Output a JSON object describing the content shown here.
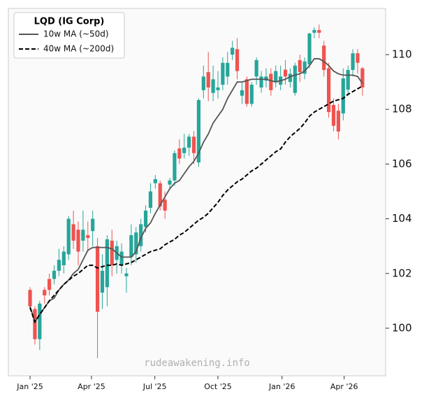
{
  "chart_data": {
    "type": "candlestick",
    "legend_title": "LQD (IG Corp)",
    "legend_position": "upper left",
    "watermark": "rudeawakening.info",
    "up_color": "#26a69a",
    "down_color": "#ef5350",
    "x": [
      0,
      1,
      2,
      3,
      4,
      5,
      6,
      7,
      8,
      9,
      10,
      11,
      12,
      13,
      14,
      15,
      16,
      17,
      18,
      19,
      20,
      21,
      22,
      23,
      24,
      25,
      26,
      27,
      28,
      29,
      30,
      31,
      32,
      33,
      34,
      35,
      36,
      37,
      38,
      39,
      40,
      41,
      42,
      43,
      44,
      45,
      46,
      47,
      48,
      49,
      50,
      51,
      52,
      53,
      54,
      55,
      56,
      57,
      58,
      59,
      60,
      61,
      62,
      63,
      64,
      65,
      66,
      67,
      68,
      69
    ],
    "open": [
      101.4,
      100.7,
      99.6,
      101.4,
      101.8,
      101.8,
      102.1,
      102.3,
      102.7,
      103.8,
      103.6,
      103.2,
      103.4,
      103.55,
      103.0,
      101.3,
      101.5,
      103.2,
      102.5,
      102.3,
      101.9,
      102.6,
      102.7,
      103.0,
      103.7,
      104.4,
      105.3,
      105.3,
      104.7,
      105.25,
      105.4,
      106.57,
      106.4,
      106.6,
      107.0,
      106.06,
      108.7,
      109.36,
      108.6,
      108.7,
      108.9,
      109.2,
      110.0,
      110.2,
      108.5,
      109.1,
      108.2,
      109.2,
      108.8,
      109.05,
      109.3,
      109.0,
      108.9,
      109.45,
      109.0,
      108.6,
      109.8,
      109.3,
      109.64,
      110.8,
      110.9,
      110.33,
      109.5,
      108.16,
      107.95,
      107.85,
      108.72,
      109.44,
      110.05,
      109.5
    ],
    "high": [
      101.5,
      100.8,
      101.0,
      101.5,
      102.0,
      102.3,
      102.9,
      103.0,
      104.1,
      104.3,
      103.9,
      104.3,
      103.9,
      104.3,
      103.3,
      102.7,
      103.4,
      103.6,
      103.2,
      103.1,
      102.2,
      103.8,
      103.7,
      104.0,
      104.5,
      105.3,
      105.6,
      105.4,
      105.0,
      105.5,
      106.5,
      106.9,
      107.1,
      107.1,
      107.2,
      108.4,
      109.6,
      110.1,
      109.6,
      109.4,
      109.9,
      110.1,
      110.5,
      110.6,
      109.0,
      109.2,
      109.0,
      109.9,
      109.4,
      109.5,
      109.5,
      109.6,
      109.6,
      109.8,
      109.5,
      109.7,
      110.0,
      109.9,
      110.8,
      111.0,
      111.1,
      110.5,
      109.7,
      108.4,
      108.2,
      109.5,
      109.6,
      110.2,
      110.2,
      109.55
    ],
    "low": [
      100.7,
      99.4,
      99.2,
      100.9,
      101.2,
      101.6,
      101.9,
      102.0,
      102.5,
      102.9,
      102.3,
      102.8,
      102.8,
      103.0,
      98.9,
      100.7,
      100.8,
      101.9,
      102.0,
      102.0,
      101.3,
      102.3,
      102.4,
      102.8,
      103.5,
      104.2,
      105.1,
      104.3,
      104.0,
      105.1,
      105.2,
      106.0,
      106.2,
      106.3,
      106.0,
      105.9,
      108.4,
      108.3,
      108.3,
      108.4,
      108.7,
      108.9,
      109.8,
      109.1,
      108.2,
      108.1,
      108.1,
      108.9,
      108.6,
      108.8,
      108.5,
      108.8,
      108.7,
      108.9,
      108.8,
      108.5,
      109.0,
      109.1,
      109.5,
      110.6,
      110.6,
      109.2,
      107.7,
      107.2,
      106.9,
      107.6,
      108.5,
      109.2,
      109.3,
      108.5
    ],
    "close": [
      100.8,
      99.6,
      100.9,
      101.2,
      101.4,
      102.1,
      102.5,
      102.8,
      104.0,
      103.2,
      102.8,
      103.6,
      103.3,
      104.0,
      100.6,
      102.1,
      103.25,
      102.3,
      103.0,
      102.8,
      102.0,
      103.4,
      103.5,
      103.8,
      104.3,
      105.0,
      105.45,
      104.45,
      104.3,
      105.4,
      106.4,
      106.2,
      106.6,
      107.0,
      106.4,
      108.34,
      109.2,
      108.8,
      109.1,
      108.8,
      109.7,
      109.7,
      110.25,
      109.4,
      108.7,
      108.2,
      108.9,
      109.8,
      109.2,
      109.2,
      108.7,
      109.4,
      109.2,
      109.2,
      109.3,
      109.6,
      109.36,
      109.75,
      110.77,
      110.9,
      110.8,
      109.44,
      107.9,
      107.4,
      107.19,
      109.13,
      109.44,
      110.05,
      109.7,
      108.8
    ],
    "lines": [
      {
        "name": "10w MA (~50d)",
        "color": "#555555",
        "dash": false,
        "values": [
          100.8,
          100.23,
          100.5,
          100.75,
          101.0,
          101.1,
          101.4,
          101.6,
          101.76,
          102.0,
          102.15,
          102.5,
          102.85,
          102.95,
          102.95,
          102.95,
          102.95,
          102.9,
          102.75,
          102.6,
          102.6,
          102.6,
          102.8,
          103.3,
          103.65,
          103.85,
          104.2,
          104.5,
          104.8,
          105.1,
          105.3,
          105.4,
          105.65,
          105.9,
          106.1,
          106.4,
          106.8,
          107.1,
          107.5,
          107.75,
          108.0,
          108.4,
          108.7,
          109.0,
          109.0,
          109.05,
          109.1,
          109.1,
          109.1,
          109.1,
          109.05,
          109.0,
          109.05,
          109.1,
          109.2,
          109.25,
          109.3,
          109.4,
          109.6,
          109.85,
          109.85,
          109.75,
          109.6,
          109.4,
          109.3,
          109.25,
          109.25,
          109.25,
          109.2,
          108.95
        ]
      },
      {
        "name": "40w MA (~200d)",
        "color": "#000000",
        "dash": true,
        "values": [
          100.75,
          100.23,
          100.5,
          100.75,
          101.0,
          101.2,
          101.4,
          101.6,
          101.75,
          101.9,
          102.0,
          102.15,
          102.3,
          102.3,
          102.2,
          102.25,
          102.3,
          102.3,
          102.35,
          102.3,
          102.35,
          102.4,
          102.5,
          102.6,
          102.7,
          102.8,
          102.85,
          102.9,
          103.05,
          103.15,
          103.25,
          103.4,
          103.5,
          103.65,
          103.8,
          103.95,
          104.05,
          104.2,
          104.4,
          104.6,
          104.85,
          105.05,
          105.2,
          105.35,
          105.45,
          105.6,
          105.75,
          105.85,
          106.0,
          106.15,
          106.3,
          106.45,
          106.55,
          106.8,
          107.0,
          107.15,
          107.3,
          107.5,
          107.75,
          107.9,
          108.0,
          108.1,
          108.2,
          108.3,
          108.35,
          108.4,
          108.55,
          108.65,
          108.75,
          108.85
        ]
      }
    ],
    "xlim": [
      -4.5,
      73.8
    ],
    "xticks": [
      {
        "value": 0,
        "label": "Jan '25"
      },
      {
        "value": 12.75,
        "label": "Apr '25"
      },
      {
        "value": 25.9,
        "label": "Jul '25"
      },
      {
        "value": 39.0,
        "label": "Oct '25"
      },
      {
        "value": 52.3,
        "label": "Jan '26"
      },
      {
        "value": 65.2,
        "label": "Apr '26"
      }
    ],
    "ylim": [
      98.26,
      111.69
    ],
    "yticks": [
      100,
      102,
      104,
      106,
      108,
      110
    ]
  }
}
